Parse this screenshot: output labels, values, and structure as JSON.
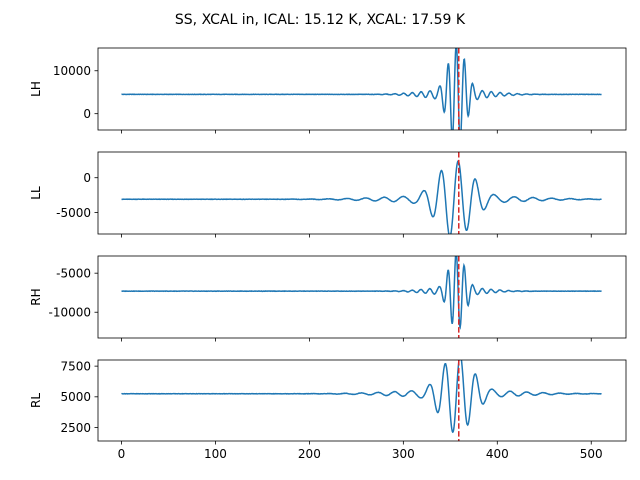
{
  "title": "SS, XCAL in, ICAL: 15.12 K, XCAL: 17.59 K",
  "colors": {
    "line": "#1f77b4",
    "marker_line": "#d62728",
    "axes": "#000000"
  },
  "chart_data": {
    "type": "line",
    "title": "SS, XCAL in, ICAL: 15.12 K, XCAL: 17.59 K",
    "shared_x": true,
    "xlim": [
      -25,
      537
    ],
    "xticks": [
      0,
      100,
      200,
      300,
      400,
      500
    ],
    "xtick_labels": [
      "0",
      "100",
      "200",
      "300",
      "400",
      "500"
    ],
    "vline_x": 359,
    "grid": false,
    "legend": "none",
    "panels": [
      {
        "ylabel": "LH",
        "ylim": [
          -3800,
          15300
        ],
        "yticks": [
          0,
          10000
        ],
        "ytick_labels": [
          "0",
          "10000"
        ],
        "signal": {
          "baseline": 4500,
          "center": 357,
          "amplitude": 10500,
          "decay": 9,
          "period": 8.5,
          "phase": 0.5,
          "baseline_drift": 0,
          "peak_min": -3000,
          "peak_max": 14700
        }
      },
      {
        "ylabel": "LL",
        "ylim": [
          -8100,
          3700
        ],
        "yticks": [
          -5000,
          0
        ],
        "ytick_labels": [
          "-5000",
          "0"
        ],
        "signal": {
          "baseline": -3100,
          "center": 355,
          "amplitude": 5000,
          "decay": 18,
          "period": 18,
          "phase": -1.2,
          "baseline_drift": 0,
          "peak_min": -7600,
          "peak_max": 3300
        }
      },
      {
        "ylabel": "RH",
        "ylim": [
          -13300,
          -2800
        ],
        "yticks": [
          -10000,
          -5000
        ],
        "ytick_labels": [
          "-10000",
          "-5000"
        ],
        "signal": {
          "baseline": -7300,
          "center": 357,
          "amplitude": 4500,
          "decay": 8,
          "period": 8.5,
          "phase": 0.6,
          "baseline_drift": 0,
          "peak_min": -12800,
          "peak_max": -3200
        }
      },
      {
        "ylabel": "RL",
        "ylim": [
          1400,
          8000
        ],
        "yticks": [
          2500,
          5000,
          7500
        ],
        "ytick_labels": [
          "2500",
          "5000",
          "7500"
        ],
        "signal": {
          "baseline": 5250,
          "center": 357,
          "amplitude": 2900,
          "decay": 16,
          "period": 16,
          "phase": -1.4,
          "baseline_drift": 0,
          "peak_min": 1500,
          "peak_max": 7600
        }
      }
    ],
    "x": {
      "start": 0,
      "end": 511
    }
  }
}
